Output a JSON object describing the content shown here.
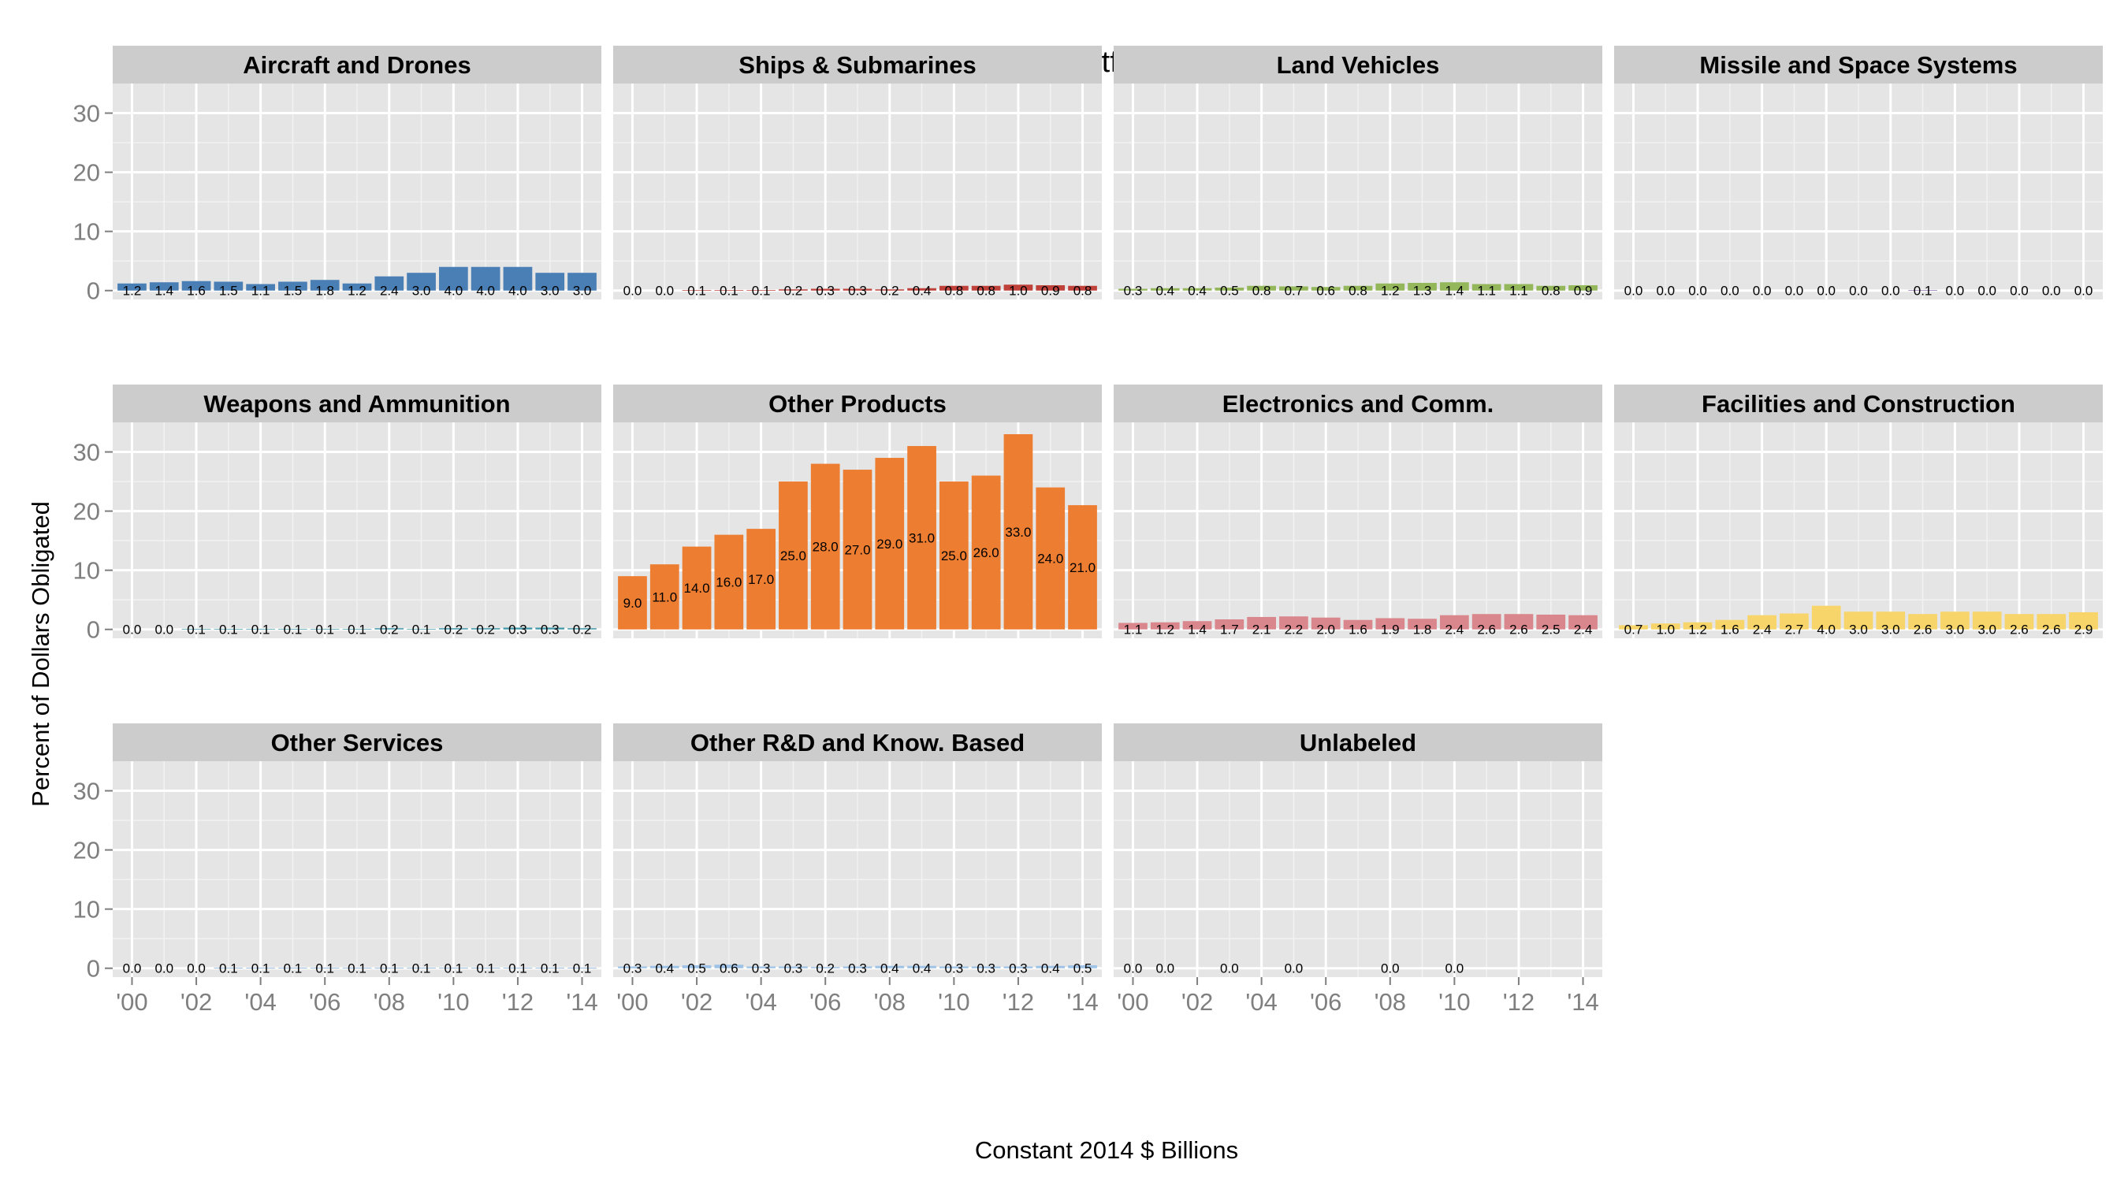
{
  "chart_data": {
    "type": "bar",
    "title": "DLA Platform Portfolio by Customer",
    "xlabel": "Constant 2014 $ Billions",
    "ylabel": "Percent of Dollars Obligated",
    "ylim": [
      -1.5,
      35
    ],
    "yticks": [
      0,
      10,
      20,
      30
    ],
    "xticks": [
      "'00",
      "'02",
      "'04",
      "'06",
      "'08",
      "'10",
      "'12",
      "'14"
    ],
    "x": [
      2000,
      2001,
      2002,
      2003,
      2004,
      2005,
      2006,
      2007,
      2008,
      2009,
      2010,
      2011,
      2012,
      2013,
      2014
    ],
    "grid": true,
    "facets": [
      {
        "name": "Aircraft and Drones",
        "color": "#4a7fb5",
        "values": [
          1.2,
          1.4,
          1.6,
          1.5,
          1.1,
          1.5,
          1.8,
          1.2,
          2.4,
          3.0,
          4.0,
          4.0,
          4.0,
          3.0,
          3.0
        ],
        "labels": [
          "1.2",
          "1.4",
          "1.6",
          "1.5",
          "1.1",
          "1.5",
          "1.8",
          "1.2",
          "2.4",
          "3.0",
          "4.0",
          "4.0",
          "4.0",
          "3.0",
          "3.0"
        ]
      },
      {
        "name": "Ships & Submarines",
        "color": "#c0403a",
        "values": [
          0.0,
          0.0,
          0.1,
          0.1,
          0.1,
          0.2,
          0.3,
          0.3,
          0.2,
          0.4,
          0.8,
          0.8,
          1.0,
          0.9,
          0.8
        ],
        "labels": [
          "0.0",
          "0.0",
          "0.1",
          "0.1",
          "0.1",
          "0.2",
          "0.3",
          "0.3",
          "0.2",
          "0.4",
          "0.8",
          "0.8",
          "1.0",
          "0.9",
          "0.8"
        ]
      },
      {
        "name": "Land Vehicles",
        "color": "#93b75a",
        "values": [
          0.3,
          0.4,
          0.4,
          0.5,
          0.8,
          0.7,
          0.6,
          0.8,
          1.2,
          1.3,
          1.4,
          1.1,
          1.1,
          0.8,
          0.9
        ],
        "labels": [
          "0.3",
          "0.4",
          "0.4",
          "0.5",
          "0.8",
          "0.7",
          "0.6",
          "0.8",
          "1.2",
          "1.3",
          "1.4",
          "1.1",
          "1.1",
          "0.8",
          "0.9"
        ]
      },
      {
        "name": "Missile and Space Systems",
        "color": "#8b6fae",
        "values": [
          0.0,
          0.0,
          0.0,
          0.0,
          0.0,
          0.0,
          0.0,
          0.0,
          0.0,
          0.1,
          0.0,
          0.0,
          0.0,
          0.0,
          0.0
        ],
        "labels": [
          "0.0",
          "0.0",
          "0.0",
          "0.0",
          "0.0",
          "0.0",
          "0.0",
          "0.0",
          "0.0",
          "0.1",
          "0.0",
          "0.0",
          "0.0",
          "0.0",
          "0.0"
        ]
      },
      {
        "name": "Weapons and Ammunition",
        "color": "#3f97a8",
        "values": [
          0.0,
          0.0,
          0.1,
          0.1,
          0.1,
          0.1,
          0.1,
          0.1,
          0.2,
          0.1,
          0.2,
          0.2,
          0.3,
          0.3,
          0.2
        ],
        "labels": [
          "0.0",
          "0.0",
          "0.1",
          "0.1",
          "0.1",
          "0.1",
          "0.1",
          "0.1",
          "0.2",
          "0.1",
          "0.2",
          "0.2",
          "0.3",
          "0.3",
          "0.2"
        ]
      },
      {
        "name": "Other Products",
        "color": "#ed7d31",
        "values": [
          9.0,
          11.0,
          14.0,
          16.0,
          17.0,
          25.0,
          28.0,
          27.0,
          29.0,
          31.0,
          25.0,
          26.0,
          33.0,
          24.0,
          21.0
        ],
        "labels": [
          "9.0",
          "11.0",
          "14.0",
          "16.0",
          "17.0",
          "25.0",
          "28.0",
          "27.0",
          "29.0",
          "31.0",
          "25.0",
          "26.0",
          "33.0",
          "24.0",
          "21.0"
        ]
      },
      {
        "name": "Electronics and Comm.",
        "color": "#d9878d",
        "values": [
          1.1,
          1.2,
          1.4,
          1.7,
          2.1,
          2.2,
          2.0,
          1.6,
          1.9,
          1.8,
          2.4,
          2.6,
          2.6,
          2.5,
          2.4
        ],
        "labels": [
          "1.1",
          "1.2",
          "1.4",
          "1.7",
          "2.1",
          "2.2",
          "2.0",
          "1.6",
          "1.9",
          "1.8",
          "2.4",
          "2.6",
          "2.6",
          "2.5",
          "2.4"
        ]
      },
      {
        "name": "Facilities and Construction",
        "color": "#f7d56a",
        "values": [
          0.7,
          1.0,
          1.2,
          1.6,
          2.4,
          2.7,
          4.0,
          3.0,
          3.0,
          2.6,
          3.0,
          3.0,
          2.6,
          2.6,
          2.9
        ],
        "labels": [
          "0.7",
          "1.0",
          "1.2",
          "1.6",
          "2.4",
          "2.7",
          "4.0",
          "3.0",
          "3.0",
          "2.6",
          "3.0",
          "3.0",
          "2.6",
          "2.6",
          "2.9"
        ]
      },
      {
        "name": "Other Services",
        "color": "#7aa3cf",
        "values": [
          0.0,
          0.0,
          0.0,
          0.1,
          0.1,
          0.1,
          0.1,
          0.1,
          0.1,
          0.1,
          0.1,
          0.1,
          0.1,
          0.1,
          0.1
        ],
        "labels": [
          "0.0",
          "0.0",
          "0.0",
          "0.1",
          "0.1",
          "0.1",
          "0.1",
          "0.1",
          "0.1",
          "0.1",
          "0.1",
          "0.1",
          "0.1",
          "0.1",
          "0.1"
        ]
      },
      {
        "name": "Other R&D and Know. Based",
        "color": "#9ec3e6",
        "values": [
          0.3,
          0.4,
          0.5,
          0.6,
          0.3,
          0.3,
          0.2,
          0.3,
          0.4,
          0.4,
          0.3,
          0.3,
          0.3,
          0.4,
          0.5
        ],
        "labels": [
          "0.3",
          "0.4",
          "0.5",
          "0.6",
          "0.3",
          "0.3",
          "0.2",
          "0.3",
          "0.4",
          "0.4",
          "0.3",
          "0.3",
          "0.3",
          "0.4",
          "0.5"
        ]
      },
      {
        "name": "Unlabeled",
        "color": "#999999",
        "values": [
          0.0,
          0.0,
          null,
          0.0,
          null,
          0.0,
          null,
          null,
          0.0,
          null,
          0.0,
          null,
          null,
          null,
          null
        ],
        "labels": [
          "0.0",
          "0.0",
          null,
          "0.0",
          null,
          "0.0",
          null,
          null,
          "0.0",
          null,
          "0.0",
          null,
          null,
          null,
          null
        ]
      }
    ]
  }
}
